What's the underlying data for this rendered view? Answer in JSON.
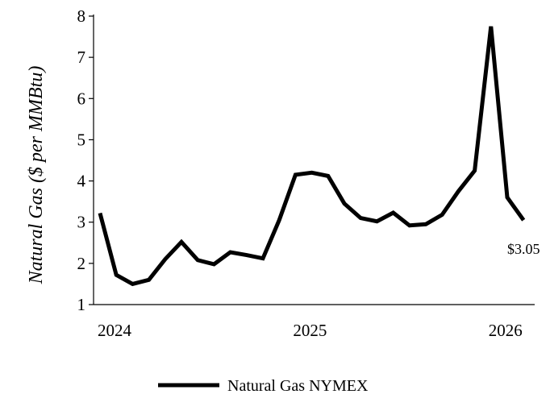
{
  "chart_data": {
    "type": "line",
    "ylabel": "Natural Gas  ($ per MMBtu)",
    "ylim": [
      1,
      8
    ],
    "yticks": [
      "1",
      "2",
      "3",
      "4",
      "5",
      "6",
      "7",
      "8"
    ],
    "xticks": [
      "2024",
      "2025",
      "2026"
    ],
    "grid": false,
    "legend_position": "bottom",
    "series": [
      {
        "name": "Natural Gas NYMEX",
        "color": "#000000",
        "x": [
          "2024-01",
          "2024-02",
          "2024-03",
          "2024-04",
          "2024-05",
          "2024-06",
          "2024-07",
          "2024-08",
          "2024-09",
          "2024-10",
          "2024-11",
          "2024-12",
          "2025-01",
          "2025-02",
          "2025-03",
          "2025-04",
          "2025-05",
          "2025-06",
          "2025-07",
          "2025-08",
          "2025-09",
          "2025-10",
          "2025-11",
          "2025-12",
          "2026-01",
          "2026-02",
          "2026-03"
        ],
        "values": [
          3.22,
          1.72,
          1.5,
          1.6,
          2.1,
          2.52,
          2.08,
          1.98,
          2.27,
          2.2,
          2.12,
          3.05,
          4.15,
          4.2,
          4.12,
          3.45,
          3.1,
          3.02,
          3.23,
          2.92,
          2.95,
          3.18,
          3.75,
          4.25,
          7.75,
          3.6,
          3.05
        ]
      }
    ],
    "annotation": "$3.05"
  }
}
